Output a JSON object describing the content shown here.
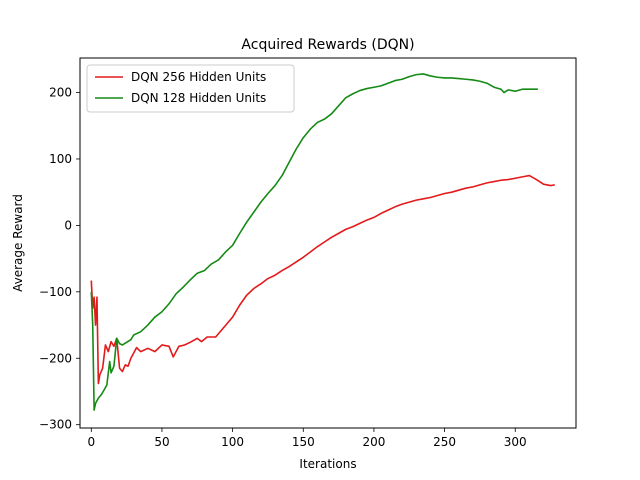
{
  "chart_data": {
    "type": "line",
    "title": "Acquired Rewards (DQN)",
    "xlabel": "Iterations",
    "ylabel": "Average Reward",
    "xlim": [
      -8,
      343
    ],
    "ylim": [
      -305,
      252
    ],
    "xticks": [
      0,
      50,
      100,
      150,
      200,
      250,
      300
    ],
    "yticks": [
      -300,
      -200,
      -100,
      0,
      100,
      200
    ],
    "grid": false,
    "legend_position": "upper-left",
    "series": [
      {
        "name": "DQN 256 Hidden Units",
        "color": "#e31a1c",
        "points": [
          [
            0,
            -83
          ],
          [
            1,
            -125
          ],
          [
            2,
            -108
          ],
          [
            3,
            -150
          ],
          [
            4,
            -108
          ],
          [
            5,
            -238
          ],
          [
            6,
            -225
          ],
          [
            8,
            -215
          ],
          [
            10,
            -180
          ],
          [
            12,
            -190
          ],
          [
            14,
            -175
          ],
          [
            16,
            -182
          ],
          [
            18,
            -170
          ],
          [
            20,
            -215
          ],
          [
            22,
            -220
          ],
          [
            24,
            -210
          ],
          [
            26,
            -212
          ],
          [
            28,
            -200
          ],
          [
            30,
            -192
          ],
          [
            32,
            -184
          ],
          [
            35,
            -190
          ],
          [
            40,
            -185
          ],
          [
            45,
            -190
          ],
          [
            50,
            -180
          ],
          [
            55,
            -182
          ],
          [
            58,
            -198
          ],
          [
            62,
            -182
          ],
          [
            66,
            -180
          ],
          [
            70,
            -176
          ],
          [
            75,
            -170
          ],
          [
            78,
            -175
          ],
          [
            82,
            -168
          ],
          [
            88,
            -168
          ],
          [
            92,
            -158
          ],
          [
            96,
            -148
          ],
          [
            100,
            -138
          ],
          [
            105,
            -120
          ],
          [
            110,
            -105
          ],
          [
            115,
            -95
          ],
          [
            120,
            -88
          ],
          [
            125,
            -80
          ],
          [
            130,
            -75
          ],
          [
            135,
            -68
          ],
          [
            140,
            -62
          ],
          [
            145,
            -55
          ],
          [
            150,
            -48
          ],
          [
            155,
            -40
          ],
          [
            160,
            -32
          ],
          [
            165,
            -25
          ],
          [
            170,
            -18
          ],
          [
            175,
            -12
          ],
          [
            180,
            -6
          ],
          [
            185,
            -2
          ],
          [
            190,
            3
          ],
          [
            195,
            8
          ],
          [
            200,
            12
          ],
          [
            205,
            18
          ],
          [
            210,
            23
          ],
          [
            215,
            28
          ],
          [
            220,
            32
          ],
          [
            225,
            35
          ],
          [
            230,
            38
          ],
          [
            235,
            40
          ],
          [
            240,
            42
          ],
          [
            245,
            45
          ],
          [
            250,
            48
          ],
          [
            255,
            50
          ],
          [
            260,
            53
          ],
          [
            265,
            56
          ],
          [
            270,
            58
          ],
          [
            275,
            61
          ],
          [
            280,
            64
          ],
          [
            285,
            66
          ],
          [
            290,
            68
          ],
          [
            295,
            69
          ],
          [
            300,
            71
          ],
          [
            305,
            73
          ],
          [
            310,
            75
          ],
          [
            315,
            69
          ],
          [
            320,
            62
          ],
          [
            325,
            60
          ],
          [
            328,
            61
          ]
        ]
      },
      {
        "name": "DQN 128 Hidden Units",
        "color": "#158a15",
        "points": [
          [
            0,
            -100
          ],
          [
            1,
            -150
          ],
          [
            2,
            -278
          ],
          [
            3,
            -268
          ],
          [
            5,
            -260
          ],
          [
            7,
            -255
          ],
          [
            9,
            -248
          ],
          [
            11,
            -240
          ],
          [
            13,
            -205
          ],
          [
            14,
            -222
          ],
          [
            16,
            -212
          ],
          [
            18,
            -170
          ],
          [
            20,
            -178
          ],
          [
            22,
            -180
          ],
          [
            25,
            -176
          ],
          [
            28,
            -172
          ],
          [
            30,
            -165
          ],
          [
            35,
            -160
          ],
          [
            40,
            -150
          ],
          [
            45,
            -138
          ],
          [
            50,
            -130
          ],
          [
            55,
            -118
          ],
          [
            60,
            -103
          ],
          [
            65,
            -93
          ],
          [
            70,
            -82
          ],
          [
            75,
            -72
          ],
          [
            80,
            -68
          ],
          [
            85,
            -58
          ],
          [
            90,
            -52
          ],
          [
            95,
            -40
          ],
          [
            100,
            -30
          ],
          [
            105,
            -12
          ],
          [
            110,
            5
          ],
          [
            115,
            20
          ],
          [
            120,
            35
          ],
          [
            125,
            48
          ],
          [
            130,
            60
          ],
          [
            135,
            75
          ],
          [
            140,
            95
          ],
          [
            145,
            115
          ],
          [
            150,
            132
          ],
          [
            155,
            145
          ],
          [
            160,
            155
          ],
          [
            165,
            160
          ],
          [
            170,
            168
          ],
          [
            175,
            180
          ],
          [
            180,
            192
          ],
          [
            185,
            198
          ],
          [
            190,
            203
          ],
          [
            195,
            206
          ],
          [
            200,
            208
          ],
          [
            205,
            210
          ],
          [
            210,
            214
          ],
          [
            215,
            218
          ],
          [
            220,
            220
          ],
          [
            225,
            224
          ],
          [
            230,
            227
          ],
          [
            235,
            228
          ],
          [
            240,
            225
          ],
          [
            245,
            223
          ],
          [
            250,
            222
          ],
          [
            255,
            222
          ],
          [
            260,
            221
          ],
          [
            265,
            220
          ],
          [
            270,
            219
          ],
          [
            275,
            217
          ],
          [
            280,
            214
          ],
          [
            285,
            208
          ],
          [
            290,
            205
          ],
          [
            292,
            200
          ],
          [
            295,
            204
          ],
          [
            300,
            202
          ],
          [
            305,
            205
          ],
          [
            310,
            205
          ],
          [
            316,
            205
          ]
        ]
      }
    ]
  }
}
